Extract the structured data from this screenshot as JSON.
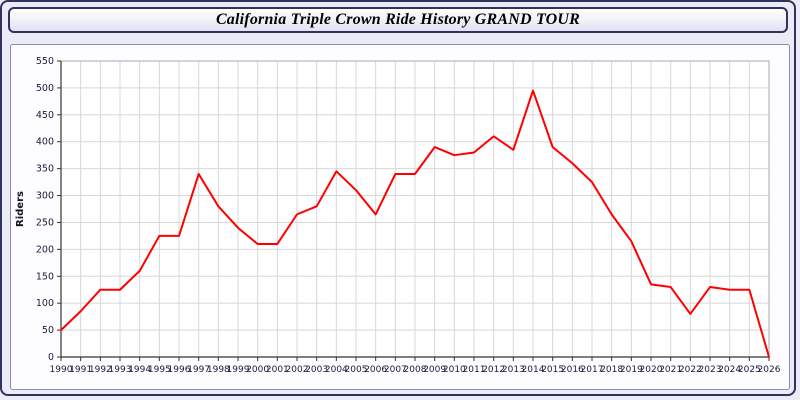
{
  "header": {
    "title": "California Triple Crown Ride History GRAND TOUR"
  },
  "chart_data": {
    "type": "line",
    "title": "California Triple Crown Ride History GRAND TOUR",
    "xlabel": "",
    "ylabel": "Riders",
    "ylim": [
      0,
      550
    ],
    "ytick_step": 50,
    "grid": true,
    "legend_position": "none",
    "line_color": "#ff0000",
    "grid_color": "#d8d8d8",
    "axis_color": "#333333",
    "label_color": "#1a1a3a",
    "categories": [
      "1990",
      "1991",
      "1992",
      "1993",
      "1994",
      "1995",
      "1996",
      "1997",
      "1998",
      "1999",
      "2000",
      "2001",
      "2002",
      "2003",
      "2004",
      "2005",
      "2006",
      "2007",
      "2008",
      "2009",
      "2010",
      "2011",
      "2012",
      "2013",
      "2014",
      "2015",
      "2016",
      "2017",
      "2018",
      "2019",
      "2020",
      "2021",
      "2022",
      "2023",
      "2024",
      "2025",
      "2026"
    ],
    "values": [
      50,
      85,
      125,
      125,
      160,
      225,
      225,
      340,
      280,
      240,
      210,
      210,
      265,
      280,
      345,
      310,
      265,
      340,
      340,
      390,
      375,
      380,
      410,
      385,
      495,
      390,
      360,
      325,
      265,
      215,
      135,
      130,
      80,
      130,
      125,
      125,
      0
    ]
  }
}
